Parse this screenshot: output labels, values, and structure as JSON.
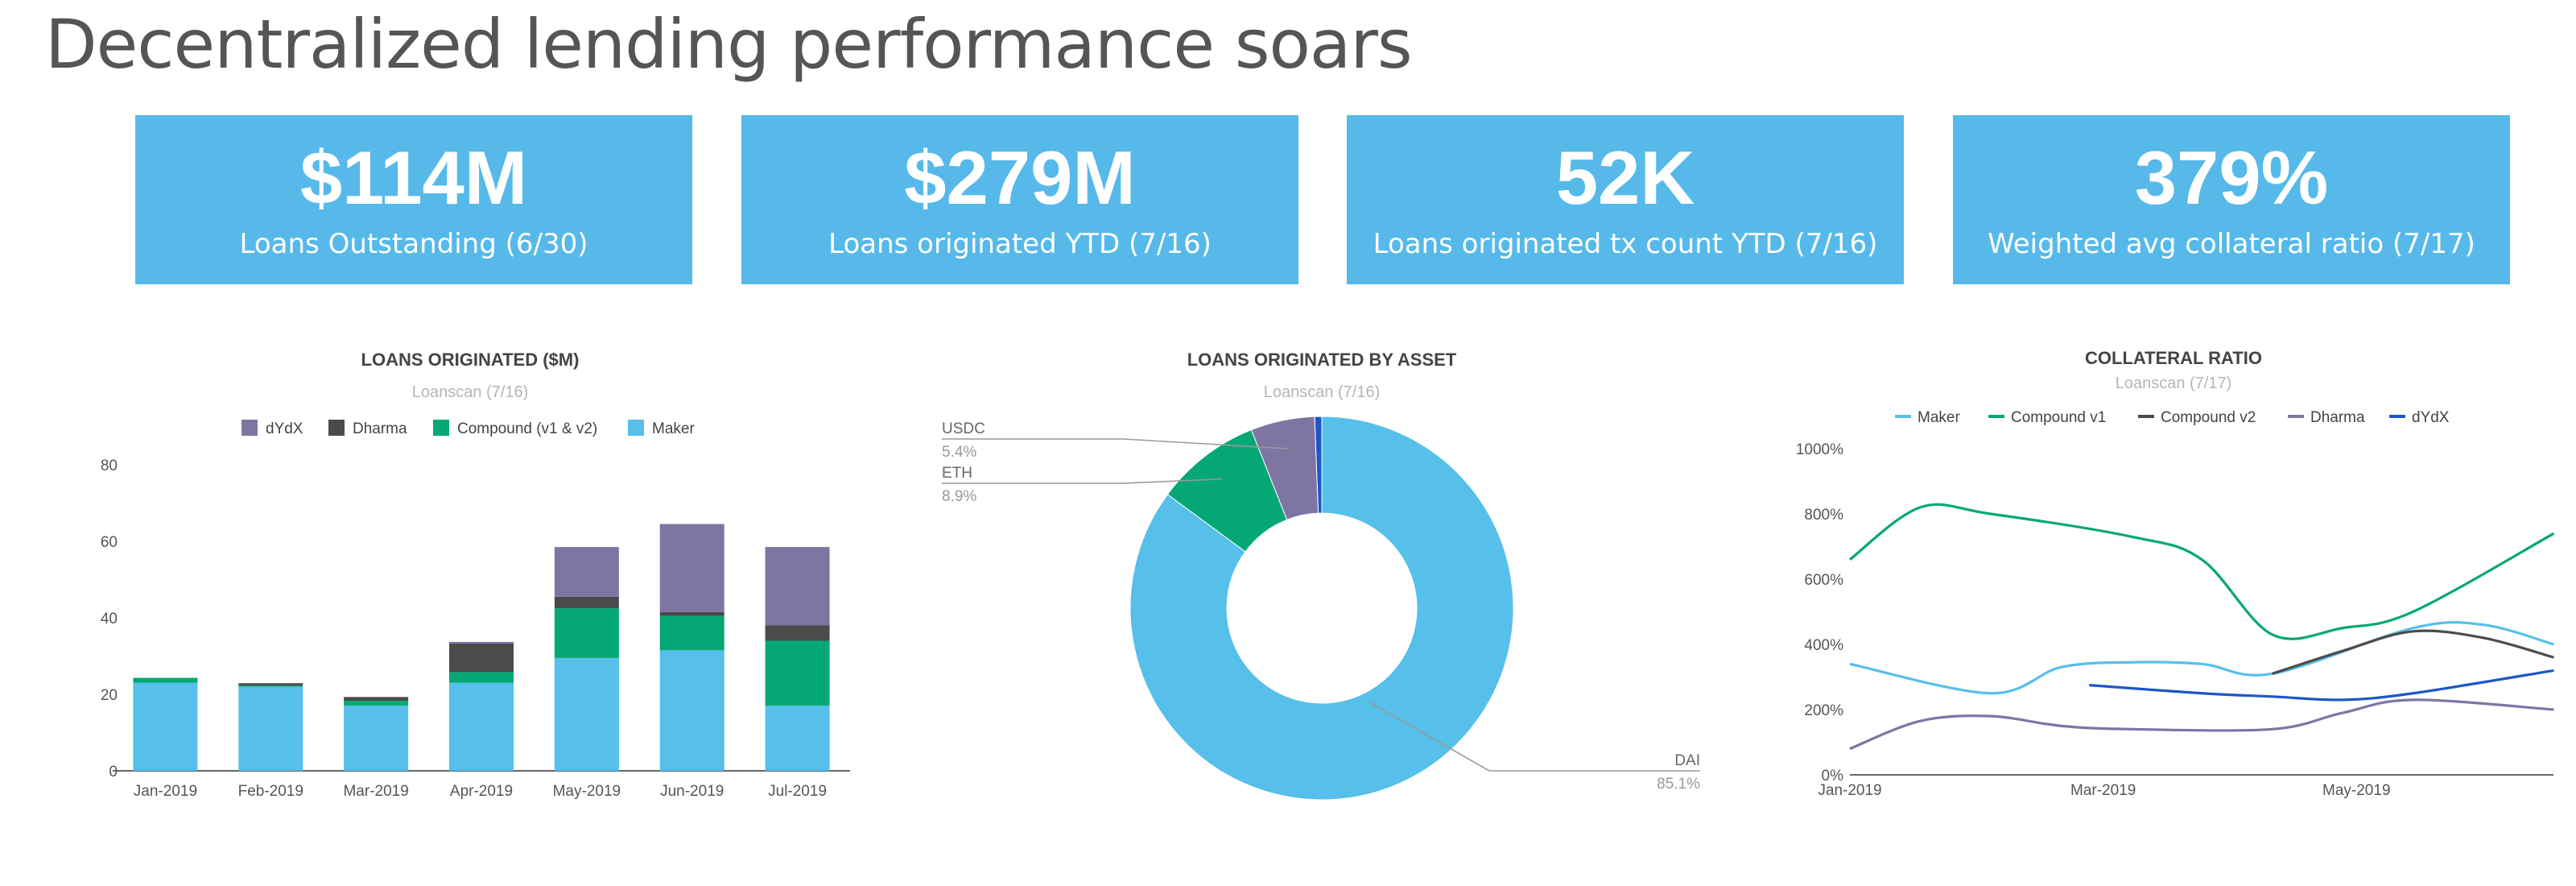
{
  "page": {
    "title": "Decentralized lending performance soars"
  },
  "kpis": [
    {
      "value": "$114M",
      "label": "Loans Outstanding (6/30)"
    },
    {
      "value": "$279M",
      "label": "Loans originated YTD (7/16)"
    },
    {
      "value": "52K",
      "label": "Loans originated tx count YTD (7/16)"
    },
    {
      "value": "379%",
      "label": "Weighted avg collateral ratio (7/17)"
    }
  ],
  "chart_data": [
    {
      "type": "bar",
      "stacked": true,
      "title": "LOANS ORIGINATED ($M)",
      "subtitle": "Loanscan (7/16)",
      "categories": [
        "Jan-2019",
        "Feb-2019",
        "Mar-2019",
        "Apr-2019",
        "May-2019",
        "Jun-2019",
        "Jul-2019"
      ],
      "ylim": [
        0,
        80
      ],
      "yticks": [
        0,
        20,
        40,
        60,
        80
      ],
      "legend_position": "top",
      "legend_order": [
        "dYdX",
        "Dharma",
        "Compound (v1 & v2)",
        "Maker"
      ],
      "series": [
        {
          "name": "Maker",
          "color": "#56bfea",
          "values": [
            23,
            22,
            17,
            23,
            29.5,
            31.5,
            17
          ]
        },
        {
          "name": "Compound (v1 & v2)",
          "color": "#05a875",
          "values": [
            1.3,
            0.3,
            1.3,
            2.8,
            13,
            9,
            17
          ]
        },
        {
          "name": "Dharma",
          "color": "#4b4b4b",
          "values": [
            0,
            0.6,
            1,
            7.5,
            3,
            1,
            4
          ]
        },
        {
          "name": "dYdX",
          "color": "#7e75a3",
          "values": [
            0,
            0,
            0,
            0.4,
            13,
            23,
            20.5
          ]
        }
      ]
    },
    {
      "type": "pie",
      "donut": true,
      "title": "LOANS ORIGINATED BY ASSET",
      "subtitle": "Loanscan (7/16)",
      "slices": [
        {
          "label": "DAI",
          "value": 85.1,
          "pct": "85.1%",
          "color": "#56bfea"
        },
        {
          "label": "ETH",
          "value": 8.9,
          "pct": "8.9%",
          "color": "#05a875"
        },
        {
          "label": "USDC",
          "value": 5.4,
          "pct": "5.4%",
          "color": "#7e75a3"
        },
        {
          "label": "",
          "value": 0.6,
          "pct": "",
          "color": "#1e56c6"
        }
      ]
    },
    {
      "type": "line",
      "title": "COLLATERAL RATIO",
      "subtitle": "Loanscan (7/17)",
      "ylim": [
        0,
        1000
      ],
      "yticks": [
        "0%",
        "200%",
        "400%",
        "600%",
        "800%",
        "1000%"
      ],
      "x_ticks": [
        "Jan-2019",
        "Mar-2019",
        "May-2019"
      ],
      "x_range_months": [
        0,
        6
      ],
      "legend_position": "top",
      "series": [
        {
          "name": "Maker",
          "color": "#56bfea",
          "points": [
            [
              0,
              340
            ],
            [
              1,
              250
            ],
            [
              1.5,
              330
            ],
            [
              2,
              345
            ],
            [
              2.5,
              340
            ],
            [
              3,
              310
            ],
            [
              4,
              450
            ],
            [
              4.5,
              460
            ],
            [
              5,
              400
            ]
          ]
        },
        {
          "name": "Compound v1",
          "color": "#05a875",
          "points": [
            [
              0,
              660
            ],
            [
              0.5,
              820
            ],
            [
              1,
              800
            ],
            [
              2,
              730
            ],
            [
              2.5,
              660
            ],
            [
              3,
              430
            ],
            [
              3.5,
              450
            ],
            [
              4,
              500
            ],
            [
              5,
              740
            ]
          ]
        },
        {
          "name": "Compound v2",
          "color": "#4b4b4b",
          "points": [
            [
              3,
              310
            ],
            [
              3.5,
              380
            ],
            [
              4,
              440
            ],
            [
              4.5,
              420
            ],
            [
              5,
              360
            ]
          ]
        },
        {
          "name": "Dharma",
          "color": "#7e75a3",
          "points": [
            [
              0,
              80
            ],
            [
              0.5,
              165
            ],
            [
              1,
              180
            ],
            [
              1.5,
              150
            ],
            [
              2,
              140
            ],
            [
              3,
              140
            ],
            [
              3.5,
              190
            ],
            [
              4,
              230
            ],
            [
              5,
              200
            ]
          ]
        },
        {
          "name": "dYdX",
          "color": "#1e56c6",
          "points": [
            [
              1.7,
              275
            ],
            [
              2.5,
              250
            ],
            [
              3,
              240
            ],
            [
              3.5,
              230
            ],
            [
              4,
              250
            ],
            [
              5,
              320
            ]
          ]
        }
      ]
    }
  ]
}
